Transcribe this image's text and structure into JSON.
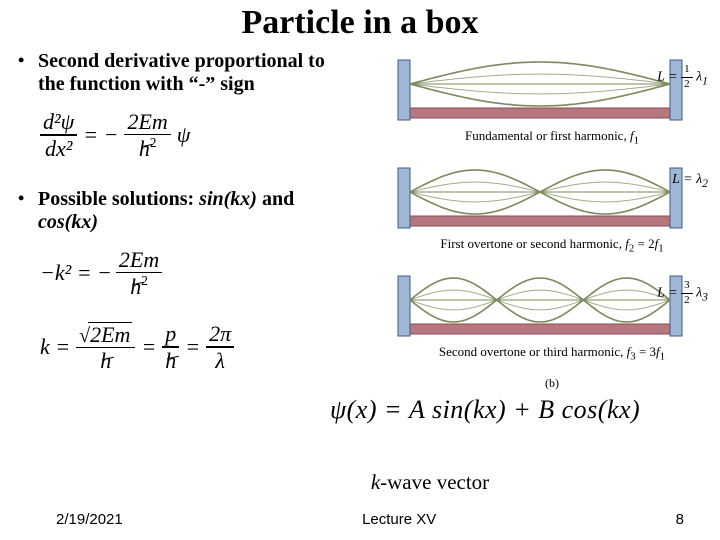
{
  "title": "Particle in a box",
  "bullets": {
    "b1_line1": "Second derivative proportional to",
    "b1_line2": "the function with “-” sign",
    "b2_part1": "Possible solutions: ",
    "b2_sin": "sin(kx)",
    "b2_and": " and ",
    "b2_cos": "cos(kx)"
  },
  "equations": {
    "eq1_lhs_num": "d²ψ",
    "eq1_lhs_den": "dx²",
    "eq1_eq": "= −",
    "eq1_rhs_num": "2Em",
    "eq1_rhs_den_h": "h",
    "eq1_rhs_den_sup": "2",
    "eq1_rhs_tail": "ψ",
    "eq2_lhs": "−k² = −",
    "eq2_rhs_num": "2Em",
    "eq2_rhs_den_h": "h",
    "eq2_rhs_den_sup": "2",
    "eq3_k": "k =",
    "eq3_f1_num_arg": "2Em",
    "eq3_f1_den_h": "h",
    "eq3_mid1": "=",
    "eq3_f2_num": "p",
    "eq3_f2_den_h": "h",
    "eq3_mid2": "=",
    "eq3_f3_num": "2π",
    "eq3_f3_den": "λ",
    "psi": "ψ(x) = A sin(kx) + B cos(kx)"
  },
  "kwave_k": "k",
  "kwave_rest": "-wave vector",
  "figure": {
    "svg_colors": {
      "string": "#7a8a5a",
      "wall_fill": "#9fb7d4",
      "wall_stroke": "#3a5f8a",
      "base": "#b5787e",
      "base_dark": "#8a4a52"
    },
    "panels": [
      {
        "n": 1,
        "L_html": "L = <span class='frac' style='font-size:11px;font-style:normal'><span class='num'>1</span><span class='bar'></span><span class='den'>2</span></span> <span class='i'>λ</span><sub>1</sub>",
        "cap_html": "Fundamental or first harmonic, <span class='i'>f</span><sub>1</sub>"
      },
      {
        "n": 2,
        "L_html": "L = <span class='i'>λ</span><sub>2</sub>",
        "cap_html": "First overtone or second harmonic, <span class='i'>f</span><sub>2</sub> = 2<span class='i'>f</span><sub>1</sub>"
      },
      {
        "n": 3,
        "L_html": "L = <span class='frac' style='font-size:11px;font-style:normal'><span class='num'>3</span><span class='bar'></span><span class='den'>2</span></span> <span class='i'>λ</span><sub>3</sub>",
        "cap_html": "Second overtone or third harmonic, <span class='i'>f</span><sub>3</sub> = 3<span class='i'>f</span><sub>1</sub>"
      }
    ],
    "b_label": "(b)"
  },
  "footer": {
    "date": "2/19/2021",
    "lecture": "Lecture XV",
    "page": "8"
  }
}
